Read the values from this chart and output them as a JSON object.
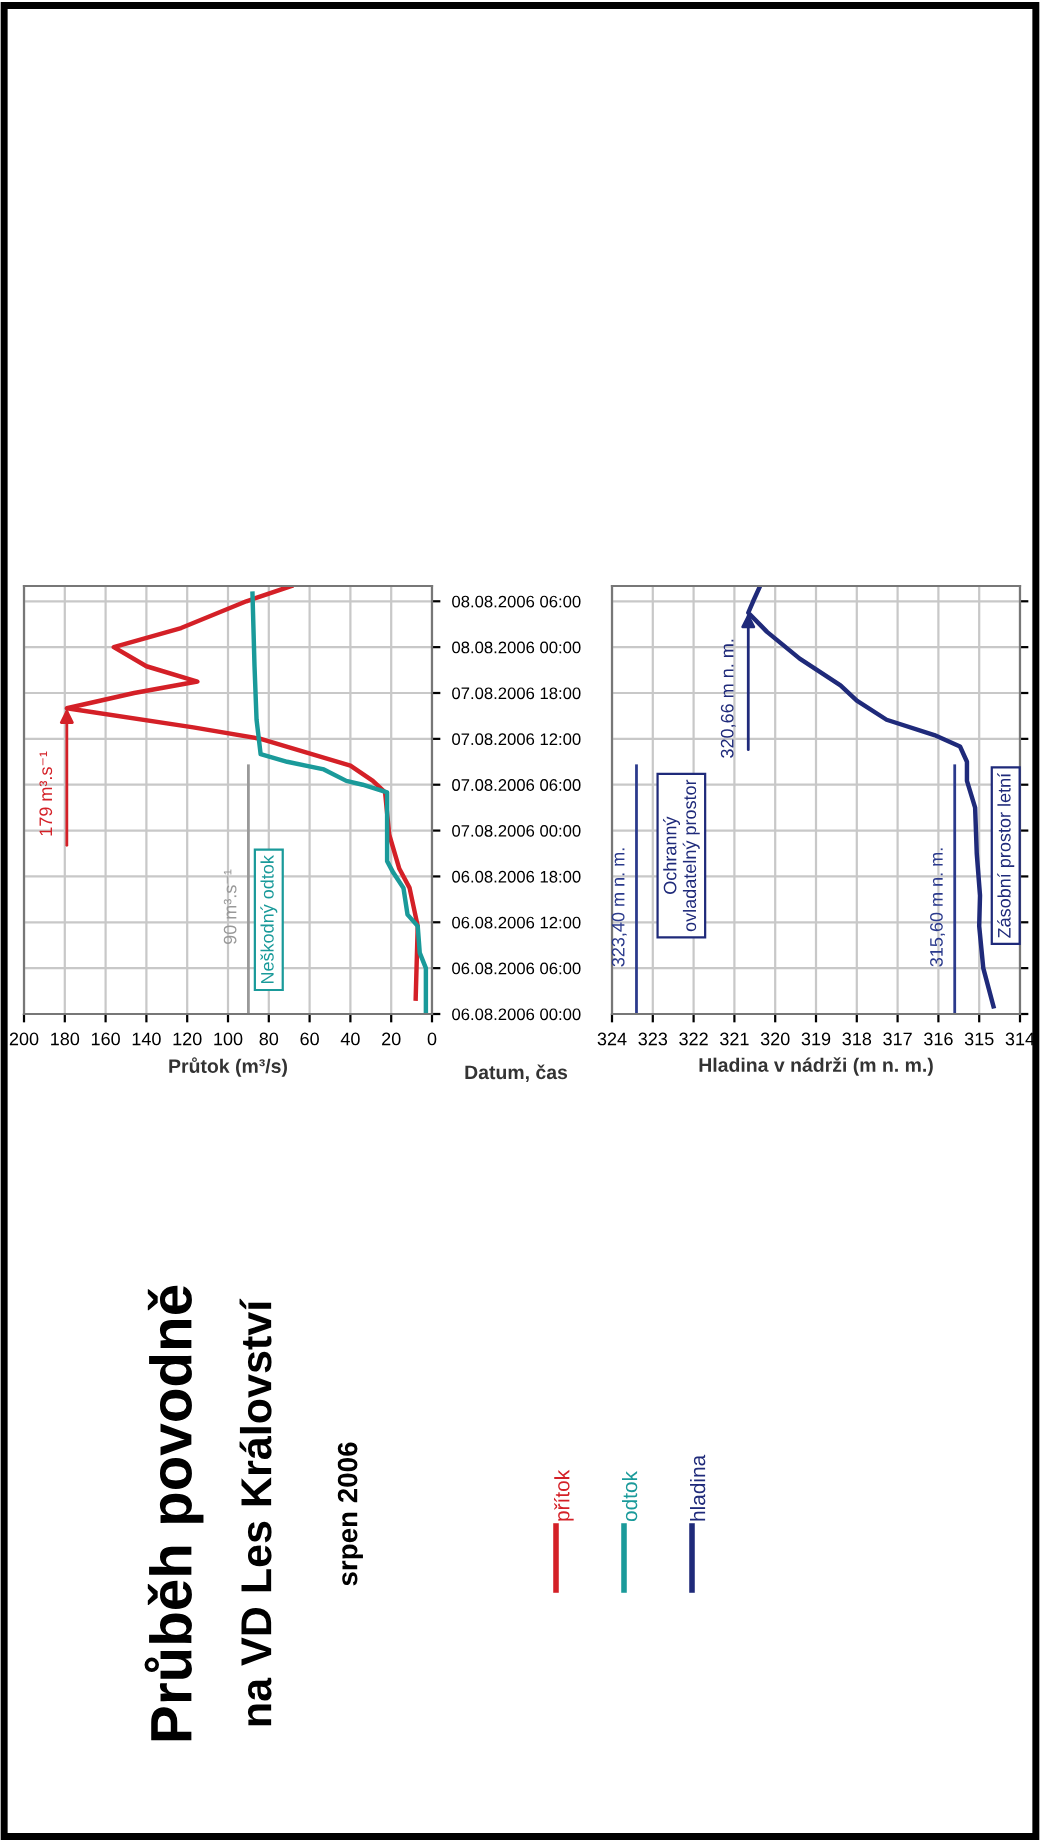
{
  "chart_data": [
    {
      "type": "line",
      "orientation": "horizontal",
      "title": "Průběh povodně",
      "subtitle": "na VD Les Království\nsrpen 2006",
      "ylabel": "Datum, čas",
      "xlabel": "Průtok (m³/s)",
      "ylim": [
        "2006-08-06T00:00",
        "2006-08-08T08:00"
      ],
      "yticks": [
        {
          "value": "2006-08-06T00:00",
          "label": "06.08.2006 00:00"
        },
        {
          "value": "2006-08-06T06:00",
          "label": "06.08.2006 06:00"
        },
        {
          "value": "2006-08-06T12:00",
          "label": "06.08.2006 12:00"
        },
        {
          "value": "2006-08-06T18:00",
          "label": "06.08.2006 18:00"
        },
        {
          "value": "2006-08-07T00:00",
          "label": "07.08.2006 00:00"
        },
        {
          "value": "2006-08-07T06:00",
          "label": "07.08.2006 06:00"
        },
        {
          "value": "2006-08-07T12:00",
          "label": "07.08.2006 12:00"
        },
        {
          "value": "2006-08-07T18:00",
          "label": "07.08.2006 18:00"
        },
        {
          "value": "2006-08-08T00:00",
          "label": "08.08.2006 00:00"
        },
        {
          "value": "2006-08-08T06:00",
          "label": "08.08.2006 06:00"
        }
      ],
      "xlim": [
        200,
        0
      ],
      "xticks": [
        0,
        20,
        40,
        60,
        80,
        100,
        120,
        140,
        160,
        180,
        200
      ],
      "grid": true,
      "legend": "bottom",
      "series": [
        {
          "name": "přítok",
          "color": "#d42027",
          "x": [
            "2006-08-06T02:00",
            "2006-08-06T11:30",
            "2006-08-06T16:30",
            "2006-08-06T19:00",
            "2006-08-06T23:30",
            "2006-08-07T05:00",
            "2006-08-07T06:30",
            "2006-08-07T08:30",
            "2006-08-07T12:00",
            "2006-08-07T13:30",
            "2006-08-07T16:00",
            "2006-08-07T18:00",
            "2006-08-07T19:30",
            "2006-08-07T21:30",
            "2006-08-08T00:00",
            "2006-08-08T02:30",
            "2006-08-08T06:00",
            "2006-08-08T08:00"
          ],
          "values": [
            8,
            7,
            11,
            16,
            21,
            23,
            29,
            40,
            84,
            117,
            179,
            146,
            115,
            140,
            156,
            123,
            91,
            69
          ]
        },
        {
          "name": "odtok",
          "color": "#1a9a9a",
          "x": [
            "2006-08-06T00:00",
            "2006-08-06T06:00",
            "2006-08-06T08:00",
            "2006-08-06T11:30",
            "2006-08-06T13:00",
            "2006-08-06T16:30",
            "2006-08-06T18:30",
            "2006-08-06T20:00",
            "2006-08-07T05:00",
            "2006-08-07T06:00",
            "2006-08-07T06:30",
            "2006-08-07T08:00",
            "2006-08-07T09:00",
            "2006-08-07T10:00",
            "2006-08-07T14:30",
            "2006-08-07T21:30",
            "2006-08-08T07:00"
          ],
          "values": [
            3,
            3,
            6,
            7,
            12,
            14,
            19,
            22,
            22,
            34,
            42,
            53,
            71,
            84,
            86,
            87,
            88
          ]
        }
      ],
      "ref_lines": [
        {
          "axis": "x",
          "value": 90,
          "label": "90 m³.s⁻¹",
          "color": "#999999"
        }
      ],
      "annotations": [
        {
          "text": "179 m³.s⁻¹",
          "x": 179,
          "y": "2006-08-07T16:00"
        },
        "Neškodný odtok"
      ]
    },
    {
      "type": "line",
      "orientation": "horizontal",
      "xlabel": "Hladina v nádrži (m n. m.)",
      "tick_labels": "x",
      "ylim": [
        "2006-08-06T00:00",
        "2006-08-08T08:00"
      ],
      "yticks": [
        {
          "value": "2006-08-06T00:00",
          "label": null
        },
        {
          "value": "2006-08-06T06:00",
          "label": null
        },
        {
          "value": "2006-08-06T12:00",
          "label": null
        },
        {
          "value": "2006-08-06T18:00",
          "label": null
        },
        {
          "value": "2006-08-07T00:00",
          "label": null
        },
        {
          "value": "2006-08-07T06:00",
          "label": null
        },
        {
          "value": "2006-08-07T12:00",
          "label": null
        },
        {
          "value": "2006-08-07T18:00",
          "label": null
        },
        {
          "value": "2006-08-08T00:00",
          "label": null
        },
        {
          "value": "2006-08-08T06:00",
          "label": null
        }
      ],
      "xlim": [
        324,
        314
      ],
      "xticks": [
        314,
        315,
        316,
        317,
        318,
        319,
        320,
        321,
        322,
        323,
        324
      ],
      "grid": true,
      "legend": "bottom",
      "series": [
        {
          "name": "hladina",
          "color": "#1f2a7a",
          "x": [
            "2006-08-06T01:00",
            "2006-08-06T06:00",
            "2006-08-06T11:30",
            "2006-08-06T15:30",
            "2006-08-06T21:00",
            "2006-08-07T03:00",
            "2006-08-07T06:30",
            "2006-08-07T09:00",
            "2006-08-07T11:00",
            "2006-08-07T12:30",
            "2006-08-07T14:30",
            "2006-08-07T17:00",
            "2006-08-07T19:00",
            "2006-08-07T22:30",
            "2006-08-08T02:00",
            "2006-08-08T04:30",
            "2006-08-08T06:00",
            "2006-08-08T08:00"
          ],
          "values": [
            314.65,
            314.9,
            315.0,
            314.98,
            315.06,
            315.1,
            315.3,
            315.3,
            315.47,
            316.1,
            317.27,
            318.0,
            318.4,
            319.4,
            320.2,
            320.66,
            320.54,
            320.37
          ]
        }
      ],
      "ref_lines": [
        {
          "axis": "x",
          "value": 323.4,
          "label": "323,40 m n. m.",
          "color": "#2b3a8c"
        },
        {
          "axis": "x",
          "value": 315.6,
          "label": "315,60 m n. m.",
          "color": "#2b3a8c"
        }
      ],
      "annotations": [
        {
          "text": "320,66 m n. m.",
          "x": 320.66,
          "y": "2006-08-08T04:30"
        },
        "Ochranný\novladatelný prostor",
        "Zásobní prostor letní"
      ]
    }
  ]
}
